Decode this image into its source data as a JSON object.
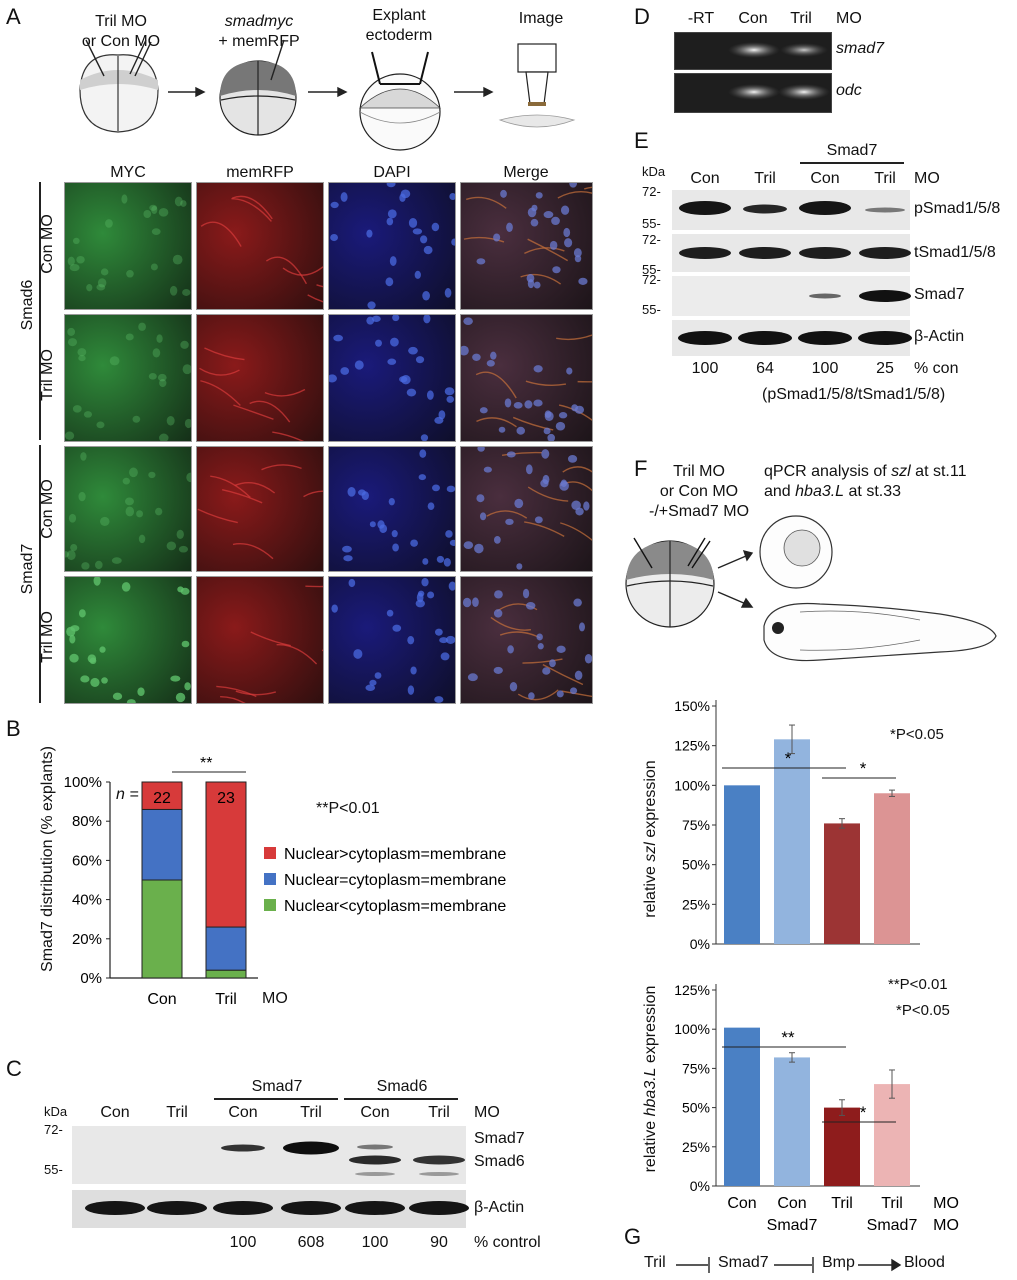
{
  "panels": {
    "A": "A",
    "B": "B",
    "C": "C",
    "D": "D",
    "E": "E",
    "F": "F",
    "G": "G"
  },
  "panelA": {
    "step1": [
      "Tril MO",
      "or Con MO"
    ],
    "step2": [
      "smadmyc",
      "+ memRFP"
    ],
    "step3": [
      "Explant",
      "ectoderm"
    ],
    "step4": "Image",
    "columns": [
      "MYC",
      "memRFP",
      "DAPI",
      "Merge"
    ],
    "groups": [
      {
        "name": "Smad6",
        "rows": [
          "Con MO",
          "Tril MO"
        ]
      },
      {
        "name": "Smad7",
        "rows": [
          "Con MO",
          "Tril MO"
        ]
      }
    ],
    "channel_colors": {
      "MYC": "#2f8a3a",
      "memRFP": "#8a1a1a",
      "DAPI": "#1a1a7a",
      "Merge": "#4a2e3e"
    }
  },
  "chart_data": [
    {
      "id": "B",
      "type": "bar",
      "stacked": true,
      "categories": [
        "Con",
        "Tril"
      ],
      "category_axis_unit": "MO",
      "series": [
        {
          "name": "Nuclear<cytoplasm=membrane",
          "color": "#6ab04c",
          "values": [
            50,
            4
          ]
        },
        {
          "name": "Nuclear=cytoplasm=membrane",
          "color": "#4472c4",
          "values": [
            36,
            22
          ]
        },
        {
          "name": "Nuclear>cytoplasm=membrane",
          "color": "#d73a3a",
          "values": [
            14,
            74
          ]
        }
      ],
      "n_label": "n =",
      "n_values": [
        "22",
        "23"
      ],
      "ylabel": "Smad7 distribution (% explants)",
      "yticks": [
        "0%",
        "20%",
        "40%",
        "60%",
        "80%",
        "100%"
      ],
      "ylim": [
        0,
        100
      ],
      "significance": "**",
      "note": "**P<0.01",
      "legend": "right"
    },
    {
      "id": "F1",
      "type": "bar",
      "categories": [
        "Con",
        "Con Smad7",
        "Tril",
        "Tril Smad7"
      ],
      "values": [
        100,
        129,
        76,
        95
      ],
      "errors": [
        0,
        9,
        3,
        2
      ],
      "colors": [
        "#4a80c4",
        "#92b4de",
        "#9c3434",
        "#dc9494"
      ],
      "ylabel_parts": [
        "relative ",
        "szl",
        " expression"
      ],
      "yticks": [
        "0%",
        "25%",
        "50%",
        "75%",
        "100%",
        "125%",
        "150%"
      ],
      "ylim": [
        0,
        150
      ],
      "significance": [
        {
          "between": [
            0,
            2
          ],
          "mark": "*"
        },
        {
          "between": [
            2,
            3
          ],
          "mark": "*"
        }
      ],
      "note": "*P<0.05"
    },
    {
      "id": "F2",
      "type": "bar",
      "categories": [
        "Con",
        "Con Smad7",
        "Tril",
        "Tril Smad7"
      ],
      "values": [
        101,
        82,
        50,
        65
      ],
      "errors": [
        0,
        3,
        5,
        9
      ],
      "colors": [
        "#4a80c4",
        "#92b4de",
        "#8e1c1c",
        "#ecb4b4"
      ],
      "ylabel_parts": [
        "relative ",
        "hba3.L",
        " expression"
      ],
      "yticks": [
        "0%",
        "25%",
        "50%",
        "75%",
        "100%",
        "125%"
      ],
      "ylim": [
        0,
        125
      ],
      "significance": [
        {
          "between": [
            0,
            2
          ],
          "mark": "**"
        },
        {
          "between": [
            2,
            3
          ],
          "mark": "*"
        }
      ],
      "note": [
        "**P<0.01",
        "*P<0.05"
      ],
      "xlabels_row1": [
        "Con",
        "Con",
        "Tril",
        "Tril",
        "MO"
      ],
      "xlabels_row2": [
        "Smad7",
        "Smad7",
        "MO"
      ]
    }
  ],
  "panelC": {
    "kda": "kDa",
    "markers": [
      "72-",
      "55-"
    ],
    "group_headers": [
      "Smad7",
      "Smad6"
    ],
    "lanes": [
      "Con",
      "Tril",
      "Con",
      "Tril",
      "Con",
      "Tril"
    ],
    "mo": "MO",
    "bands": [
      "Smad7",
      "Smad6"
    ],
    "loading": "β-Actin",
    "quant": [
      "100",
      "608",
      "100",
      "90"
    ],
    "quant_label": "% control"
  },
  "panelD": {
    "lanes": [
      "-RT",
      "Con",
      "Tril"
    ],
    "mo": "MO",
    "genes": [
      "smad7",
      "odc"
    ]
  },
  "panelE": {
    "kda": "kDa",
    "markers": [
      "72-",
      "55-",
      "72-",
      "55-",
      "72-",
      "55-"
    ],
    "lanes": [
      "Con",
      "Tril",
      "Con",
      "Tril"
    ],
    "group_header": "Smad7",
    "mo": "MO",
    "bands": [
      "pSmad1/5/8",
      "tSmad1/5/8",
      "Smad7",
      "β-Actin"
    ],
    "quant": [
      "100",
      "64",
      "100",
      "25"
    ],
    "quant_label": "% con",
    "ratio_label": "(pSmad1/5/8/tSmad1/5/8)"
  },
  "panelF": {
    "injection": [
      "Tril MO",
      "or Con MO",
      "-/+Smad7 MO"
    ],
    "analysis_line1_parts": [
      "qPCR analysis of ",
      "szl",
      " at st.11"
    ],
    "analysis_line2_parts": [
      "and ",
      "hba3.L",
      " at st.33"
    ]
  },
  "panelG": {
    "nodes": [
      "Tril",
      "Smad7",
      "Bmp",
      "Blood"
    ]
  }
}
